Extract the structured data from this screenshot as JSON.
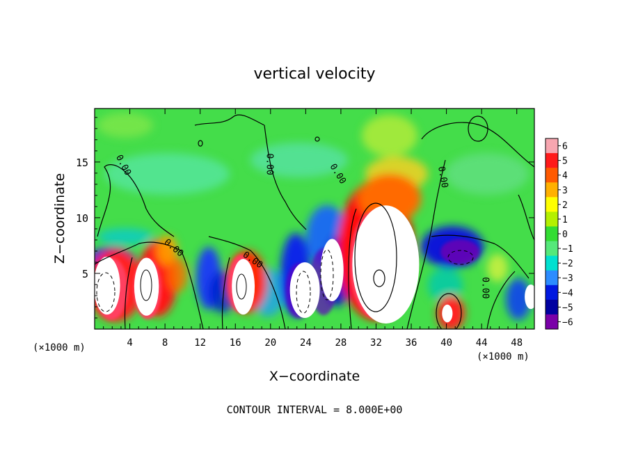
{
  "chart_data": {
    "type": "heatmap",
    "title": "vertical velocity",
    "xlabel": "X−coordinate",
    "ylabel": "Z−coordinate",
    "x_unit_left": "(×1000 m)",
    "x_unit_right": "(×1000 m)",
    "footer": "CONTOUR INTERVAL = 8.000E+00",
    "xlim": [
      0,
      50
    ],
    "ylim": [
      0,
      19.8
    ],
    "x_ticks": [
      4,
      8,
      12,
      16,
      20,
      24,
      28,
      32,
      36,
      40,
      44,
      48
    ],
    "x_tick_labels": [
      "4",
      "8",
      "12",
      "16",
      "20",
      "24",
      "28",
      "32",
      "36",
      "40",
      "44",
      "48"
    ],
    "y_ticks": [
      5,
      10,
      15
    ],
    "y_tick_labels": [
      "5",
      "10",
      "15"
    ],
    "colorbar": {
      "range": [
        -6,
        6
      ],
      "labels": [
        "6",
        "5",
        "4",
        "3",
        "2",
        "1",
        "0",
        "−1",
        "−2",
        "−3",
        "−4",
        "−5",
        "−6"
      ],
      "colors": [
        "#f7a6b0",
        "#ff1a1a",
        "#ff5a00",
        "#ffb000",
        "#ffff00",
        "#b4f000",
        "#33dd33",
        "#55e87a",
        "#00e0d0",
        "#2c8cff",
        "#0018e0",
        "#0000a0",
        "#7a00a8"
      ]
    },
    "contour_labels": [
      {
        "text": "0.00",
        "x": 3.0,
        "z": 14.6,
        "angle": 62
      },
      {
        "text": "0.00",
        "x": 8.8,
        "z": 7.1,
        "angle": 40
      },
      {
        "text": "0.00",
        "x": 17.8,
        "z": 6.0,
        "angle": 35
      },
      {
        "text": "0.00",
        "x": 19.6,
        "z": 14.8,
        "angle": 90
      },
      {
        "text": "0.00",
        "x": 27.4,
        "z": 13.8,
        "angle": 58
      },
      {
        "text": "0.00",
        "x": 39.3,
        "z": 13.6,
        "angle": 80
      },
      {
        "text": "0.00",
        "x": 44.1,
        "z": 3.7,
        "angle": 90
      }
    ],
    "updraft_cores": [
      {
        "x": 1.4,
        "z": 3.9,
        "rx": 1.5,
        "rz": 2.6
      },
      {
        "x": 5.9,
        "z": 3.8,
        "rx": 1.4,
        "rz": 2.6
      },
      {
        "x": 16.9,
        "z": 3.8,
        "rx": 1.3,
        "rz": 2.5
      },
      {
        "x": 23.9,
        "z": 3.5,
        "rx": 1.7,
        "rz": 2.5
      },
      {
        "x": 27.0,
        "z": 5.3,
        "rx": 1.3,
        "rz": 2.8
      },
      {
        "x": 33.1,
        "z": 5.8,
        "rx": 3.8,
        "rz": 5.3
      },
      {
        "x": 40.1,
        "z": 1.4,
        "rx": 0.6,
        "rz": 0.8
      },
      {
        "x": 49.6,
        "z": 2.9,
        "rx": 0.7,
        "rz": 1.1
      }
    ]
  }
}
